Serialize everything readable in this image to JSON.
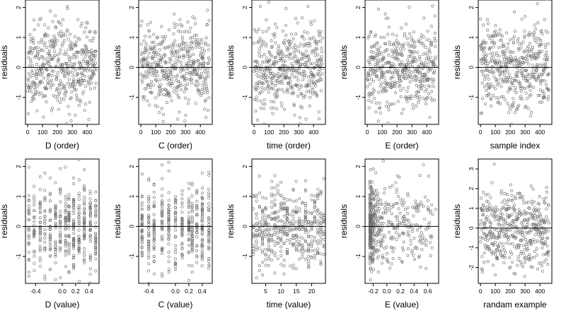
{
  "chart_data": [
    {
      "type": "scatter",
      "xlabel": "D (order)",
      "ylabel": "residuals",
      "xticks": [
        "0",
        "100",
        "200",
        "300",
        "400"
      ],
      "xtick_values": [
        0,
        100,
        200,
        300,
        400
      ],
      "yticks": [
        "-1",
        "0",
        "1",
        "2"
      ],
      "ytick_values": [
        -1,
        0,
        1,
        2
      ],
      "xlim": [
        -15,
        480
      ],
      "ylim": [
        -1.9,
        2.25
      ],
      "reference_line_y": 0,
      "x_distribution": "uniform",
      "x_range": [
        0,
        460
      ],
      "n_points": 460,
      "residual_sd": 0.7,
      "seed": 11,
      "grid": false,
      "legend": "none"
    },
    {
      "type": "scatter",
      "xlabel": "C (order)",
      "ylabel": "residuals",
      "xticks": [
        "0",
        "100",
        "200",
        "300",
        "400"
      ],
      "xtick_values": [
        0,
        100,
        200,
        300,
        400
      ],
      "yticks": [
        "-1",
        "0",
        "1",
        "2"
      ],
      "ytick_values": [
        -1,
        0,
        1,
        2
      ],
      "xlim": [
        -15,
        480
      ],
      "ylim": [
        -1.9,
        2.25
      ],
      "reference_line_y": 0,
      "x_distribution": "uniform",
      "x_range": [
        0,
        460
      ],
      "n_points": 460,
      "residual_sd": 0.7,
      "seed": 23,
      "grid": false,
      "legend": "none"
    },
    {
      "type": "scatter",
      "xlabel": "time (order)",
      "ylabel": "residuals",
      "xticks": [
        "0",
        "100",
        "200",
        "300",
        "400"
      ],
      "xtick_values": [
        0,
        100,
        200,
        300,
        400
      ],
      "yticks": [
        "-1",
        "0",
        "1",
        "2"
      ],
      "ytick_values": [
        -1,
        0,
        1,
        2
      ],
      "xlim": [
        -15,
        480
      ],
      "ylim": [
        -1.9,
        2.25
      ],
      "reference_line_y": 0,
      "x_distribution": "uniform",
      "x_range": [
        0,
        460
      ],
      "n_points": 460,
      "residual_sd": 0.7,
      "seed": 37,
      "grid": false,
      "legend": "none"
    },
    {
      "type": "scatter",
      "xlabel": "E (order)",
      "ylabel": "residuals",
      "xticks": [
        "0",
        "100",
        "200",
        "300",
        "400"
      ],
      "xtick_values": [
        0,
        100,
        200,
        300,
        400
      ],
      "yticks": [
        "-1",
        "0",
        "1",
        "2"
      ],
      "ytick_values": [
        -1,
        0,
        1,
        2
      ],
      "xlim": [
        -15,
        480
      ],
      "ylim": [
        -1.9,
        2.25
      ],
      "reference_line_y": 0,
      "x_distribution": "uniform",
      "x_range": [
        0,
        460
      ],
      "n_points": 460,
      "residual_sd": 0.7,
      "seed": 41,
      "grid": false,
      "legend": "none"
    },
    {
      "type": "scatter",
      "xlabel": "sample index",
      "ylabel": "residuals",
      "xticks": [
        "0",
        "100",
        "200",
        "300",
        "400"
      ],
      "xtick_values": [
        0,
        100,
        200,
        300,
        400
      ],
      "yticks": [
        "-1",
        "0",
        "1",
        "2"
      ],
      "ytick_values": [
        -1,
        0,
        1,
        2
      ],
      "xlim": [
        -15,
        480
      ],
      "ylim": [
        -1.9,
        2.25
      ],
      "reference_line_y": 0,
      "x_distribution": "uniform",
      "x_range": [
        0,
        460
      ],
      "n_points": 460,
      "residual_sd": 0.7,
      "seed": 53,
      "grid": false,
      "legend": "none"
    },
    {
      "type": "scatter",
      "xlabel": "D (value)",
      "ylabel": "residuals",
      "xticks": [
        "-0.4",
        "0.0",
        "0.2",
        "0.4"
      ],
      "xtick_values": [
        -0.4,
        0.0,
        0.2,
        0.4
      ],
      "yticks": [
        "-1",
        "0",
        "1",
        "2"
      ],
      "ytick_values": [
        -1,
        0,
        1,
        2
      ],
      "xlim": [
        -0.55,
        0.55
      ],
      "ylim": [
        -1.9,
        2.25
      ],
      "reference_line_y": 0,
      "x_distribution": "discrete",
      "x_levels": [
        -0.5,
        -0.42,
        -0.33,
        -0.26,
        -0.18,
        -0.1,
        -0.03,
        0.05,
        0.1,
        0.17,
        0.25,
        0.33,
        0.42,
        0.5
      ],
      "x_range": [
        -0.5,
        0.5
      ],
      "n_points": 460,
      "residual_sd": 0.7,
      "seed": 67,
      "grid": false,
      "legend": "none"
    },
    {
      "type": "scatter",
      "xlabel": "C (value)",
      "ylabel": "residuals",
      "xticks": [
        "-0.4",
        "0.0",
        "0.2",
        "0.4"
      ],
      "xtick_values": [
        -0.4,
        0.0,
        0.2,
        0.4
      ],
      "yticks": [
        "-1",
        "0",
        "1",
        "2"
      ],
      "ytick_values": [
        -1,
        0,
        1,
        2
      ],
      "xlim": [
        -0.55,
        0.55
      ],
      "ylim": [
        -1.9,
        2.25
      ],
      "reference_line_y": 0,
      "x_distribution": "discrete",
      "x_levels": [
        -0.5,
        -0.4,
        -0.32,
        -0.2,
        -0.1,
        0.0,
        0.1,
        0.2,
        0.25,
        0.32,
        0.4,
        0.5
      ],
      "x_range": [
        -0.5,
        0.5
      ],
      "n_points": 460,
      "residual_sd": 0.7,
      "seed": 79,
      "grid": false,
      "legend": "none"
    },
    {
      "type": "scatter",
      "xlabel": "time (value)",
      "ylabel": "residuals",
      "xticks": [
        "5",
        "10",
        "15",
        "20"
      ],
      "xtick_values": [
        5,
        10,
        15,
        20
      ],
      "yticks": [
        "-1",
        "0",
        "1",
        "2"
      ],
      "ytick_values": [
        -1,
        0,
        1,
        2
      ],
      "xlim": [
        0.5,
        24.5
      ],
      "ylim": [
        -1.9,
        2.25
      ],
      "reference_line_y": 0,
      "x_distribution": "discrete",
      "x_levels": [
        1,
        2,
        3,
        4,
        5,
        6,
        7,
        8,
        9,
        10,
        11,
        12,
        13,
        14,
        15,
        16,
        17,
        18,
        19,
        20,
        21,
        22,
        23,
        24
      ],
      "x_range": [
        1,
        24
      ],
      "n_points": 460,
      "residual_sd": 0.7,
      "seed": 83,
      "grid": false,
      "legend": "none"
    },
    {
      "type": "scatter",
      "xlabel": "E (value)",
      "ylabel": "residuals",
      "xticks": [
        "-0.2",
        "0.0",
        "0.2",
        "0.4",
        "0.6"
      ],
      "xtick_values": [
        -0.2,
        0.0,
        0.2,
        0.4,
        0.6
      ],
      "yticks": [
        "-1",
        "0",
        "1",
        "2"
      ],
      "ytick_values": [
        -1,
        0,
        1,
        2
      ],
      "xlim": [
        -0.32,
        0.76
      ],
      "ylim": [
        -1.9,
        2.25
      ],
      "reference_line_y": 0,
      "x_distribution": "skewed",
      "x_range": [
        -0.25,
        0.72
      ],
      "n_points": 460,
      "residual_sd": 0.7,
      "seed": 97,
      "grid": false,
      "legend": "none"
    },
    {
      "type": "scatter",
      "xlabel": "randam example",
      "ylabel": "residuals",
      "xticks": [
        "0",
        "100",
        "200",
        "300",
        "400"
      ],
      "xtick_values": [
        0,
        100,
        200,
        300,
        400
      ],
      "yticks": [
        "-2",
        "-1",
        "0",
        "1",
        "2",
        "3"
      ],
      "ytick_values": [
        -2,
        -1,
        0,
        1,
        2,
        3
      ],
      "xlim": [
        -15,
        480
      ],
      "ylim": [
        -2.8,
        3.5
      ],
      "reference_line_y": 0,
      "x_distribution": "uniform",
      "x_range": [
        0,
        460
      ],
      "n_points": 460,
      "residual_sd": 1.0,
      "seed": 101,
      "grid": false,
      "legend": "none"
    }
  ]
}
